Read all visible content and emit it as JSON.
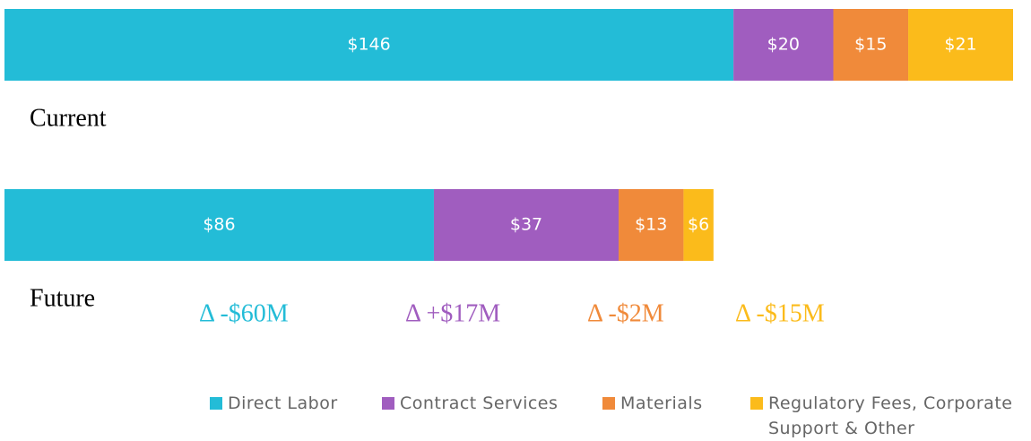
{
  "chart_data": {
    "type": "stacked-bar-horizontal",
    "categories": [
      "Current",
      "Future"
    ],
    "series": [
      {
        "name": "Direct Labor",
        "color": "#23bcd7",
        "values": [
          146,
          86
        ],
        "value_labels": [
          "$146",
          "$86"
        ]
      },
      {
        "name": "Contract Services",
        "color": "#a05dbf",
        "values": [
          20,
          37
        ],
        "value_labels": [
          "$20",
          "$37"
        ]
      },
      {
        "name": "Materials",
        "color": "#f08a3a",
        "values": [
          15,
          13
        ],
        "value_labels": [
          "$15",
          "$13"
        ]
      },
      {
        "name": "Regulatory Fees, Corporate Support & Other",
        "color": "#fbbb1b",
        "values": [
          21,
          6
        ],
        "value_labels": [
          "$21",
          "$6"
        ]
      }
    ],
    "annotations": [
      "Δ -$60M",
      "Δ +$17M",
      "Δ -$2M",
      "Δ -$15M"
    ],
    "legend": "bottom"
  }
}
